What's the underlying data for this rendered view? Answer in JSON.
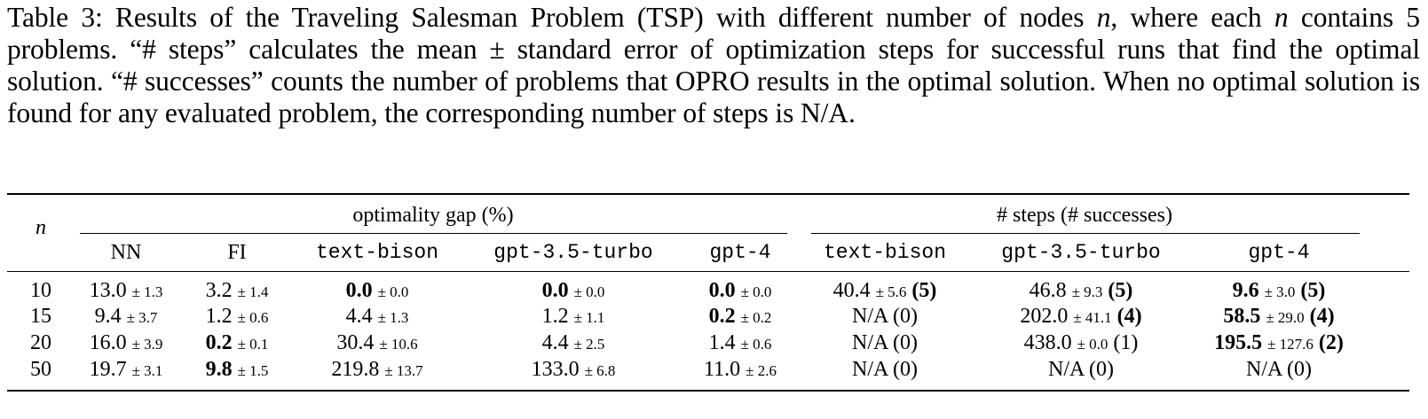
{
  "caption": {
    "label": "Table 3:",
    "segments": [
      " Results of the Traveling Salesman Problem (TSP) with different number of nodes ",
      "n",
      ", where each ",
      "n",
      " contains 5 problems. “# steps” calculates the mean ± standard error of optimization steps for successful runs that find the optimal solution. “# successes” counts the number of problems that OPRO results in the optimal solution. When no optimal solution is found for any evaluated problem, the corresponding number of steps is N/A."
    ]
  },
  "table": {
    "n_header": "n",
    "group_headers": [
      "optimality gap (%)",
      "# steps (# successes)"
    ],
    "columns": [
      "NN",
      "FI",
      "text-bison",
      "gpt-3.5-turbo",
      "gpt-4",
      "text-bison",
      "gpt-3.5-turbo",
      "gpt-4"
    ],
    "rows": [
      {
        "n": "10",
        "cells": [
          {
            "v": "13.0",
            "se": "± 1.3"
          },
          {
            "v": "3.2",
            "se": "± 1.4"
          },
          {
            "v": "0.0",
            "se": "± 0.0",
            "bold": true
          },
          {
            "v": "0.0",
            "se": "± 0.0",
            "bold": true
          },
          {
            "v": "0.0",
            "se": "± 0.0",
            "bold": true
          },
          {
            "v": "40.4",
            "se": "± 5.6",
            "succ": "(5)",
            "succ_bold": true
          },
          {
            "v": "46.8",
            "se": "± 9.3",
            "succ": "(5)",
            "succ_bold": true
          },
          {
            "v": "9.6",
            "se": "± 3.0",
            "succ": "(5)",
            "bold": true,
            "succ_bold": true
          }
        ]
      },
      {
        "n": "15",
        "cells": [
          {
            "v": "9.4",
            "se": "± 3.7"
          },
          {
            "v": "1.2",
            "se": "± 0.6"
          },
          {
            "v": "4.4",
            "se": "± 1.3"
          },
          {
            "v": "1.2",
            "se": "± 1.1"
          },
          {
            "v": "0.2",
            "se": "± 0.2",
            "bold": true
          },
          {
            "v": "N/A (0)"
          },
          {
            "v": "202.0",
            "se": "± 41.1",
            "succ": "(4)",
            "succ_bold": true
          },
          {
            "v": "58.5",
            "se": "± 29.0",
            "succ": "(4)",
            "bold": true,
            "succ_bold": true
          }
        ]
      },
      {
        "n": "20",
        "cells": [
          {
            "v": "16.0",
            "se": "± 3.9"
          },
          {
            "v": "0.2",
            "se": "± 0.1",
            "bold": true
          },
          {
            "v": "30.4",
            "se": "± 10.6"
          },
          {
            "v": "4.4",
            "se": "± 2.5"
          },
          {
            "v": "1.4",
            "se": "± 0.6"
          },
          {
            "v": "N/A (0)"
          },
          {
            "v": "438.0",
            "se": "± 0.0",
            "succ": "(1)"
          },
          {
            "v": "195.5",
            "se": "± 127.6",
            "succ": "(2)",
            "bold": true,
            "succ_bold": true
          }
        ]
      },
      {
        "n": "50",
        "cells": [
          {
            "v": "19.7",
            "se": "± 3.1"
          },
          {
            "v": "9.8",
            "se": "± 1.5",
            "bold": true
          },
          {
            "v": "219.8",
            "se": "± 13.7"
          },
          {
            "v": "133.0",
            "se": "± 6.8"
          },
          {
            "v": "11.0",
            "se": "± 2.6"
          },
          {
            "v": "N/A (0)"
          },
          {
            "v": "N/A (0)"
          },
          {
            "v": "N/A (0)"
          }
        ]
      }
    ]
  }
}
